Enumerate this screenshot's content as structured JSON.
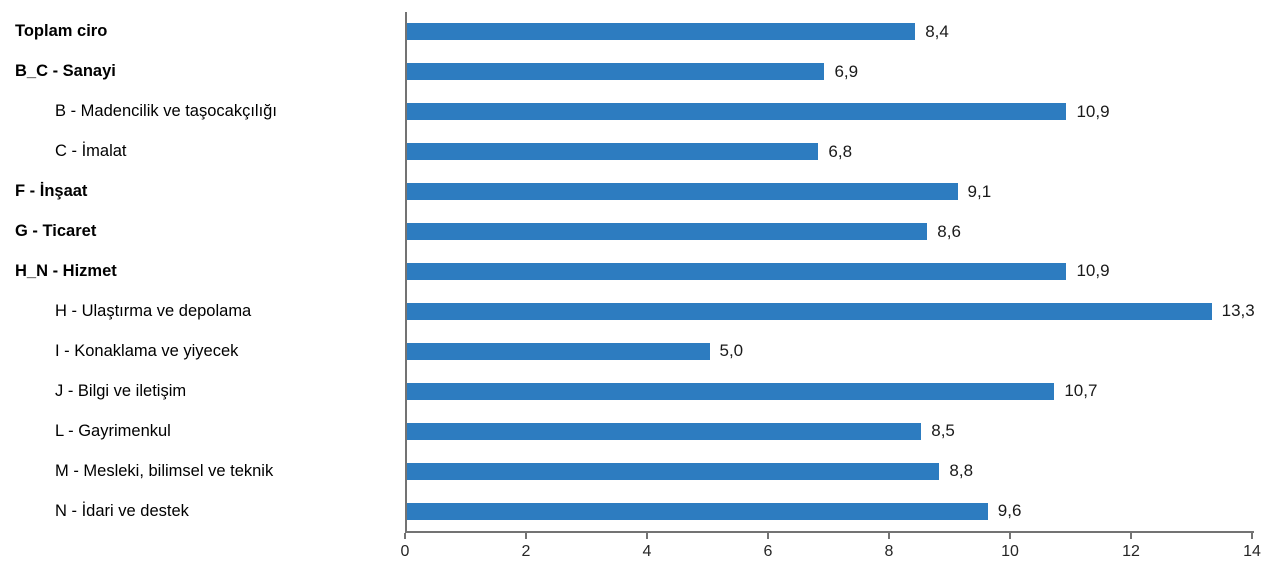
{
  "chart_data": {
    "type": "bar",
    "orientation": "horizontal",
    "title": "",
    "xlabel": "",
    "ylabel": "",
    "categories": [
      "Toplam ciro",
      "B_C - Sanayi",
      "B - Madencilik ve taşocakçılığı",
      "C - İmalat",
      "F - İnşaat",
      "G - Ticaret",
      "H_N - Hizmet",
      "H - Ulaştırma ve depolama",
      "I - Konaklama ve yiyecek",
      "J - Bilgi ve iletişim",
      "L - Gayrimenkul",
      "M - Mesleki, bilimsel ve teknik",
      "N - İdari ve destek"
    ],
    "values": [
      8.4,
      6.9,
      10.9,
      6.8,
      9.1,
      8.6,
      10.9,
      13.3,
      5.0,
      10.7,
      8.5,
      8.8,
      9.6
    ],
    "value_labels": [
      "8,4",
      "6,9",
      "10,9",
      "6,8",
      "9,1",
      "8,6",
      "10,9",
      "13,3",
      "5,0",
      "10,7",
      "8,5",
      "8,8",
      "9,6"
    ],
    "bold_categories": [
      true,
      true,
      false,
      false,
      true,
      true,
      true,
      false,
      false,
      false,
      false,
      false,
      false
    ],
    "indented_categories": [
      false,
      false,
      true,
      true,
      false,
      false,
      false,
      true,
      true,
      true,
      true,
      true,
      true
    ],
    "xlim": [
      0,
      14
    ],
    "x_ticks": [
      "0",
      "2",
      "4",
      "6",
      "8",
      "10",
      "12",
      "14"
    ],
    "grid": false,
    "legend": "none",
    "decimal_separator": ",",
    "bar_color": "#2d7cc0",
    "axis_color": "#737373",
    "text_color": "#000000"
  }
}
